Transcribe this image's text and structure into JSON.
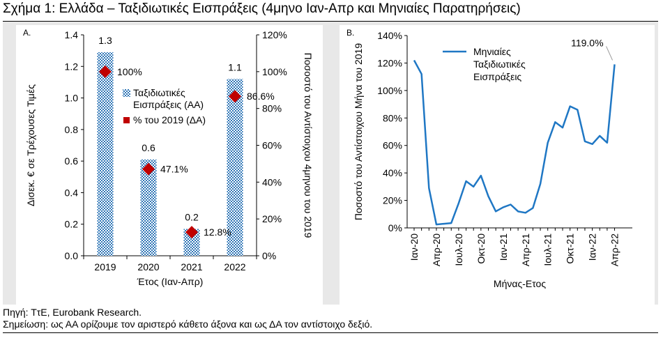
{
  "title": "Σχήμα 1: Ελλάδα – Ταξιδιωτικές Εισπράξεις (4μηνο Ιαν-Απρ και Μηνιαίες Παρατηρήσεις)",
  "notes": {
    "source": "Πηγή: ΤτΕ, Eurobank Research.",
    "remark": "Σημείωση: ως ΑΑ ορίζουμε τον αριστερό κάθετο άξονα και ως ΔΑ τον αντίστοιχο δεξιό."
  },
  "colors": {
    "bar": "#2e75b6",
    "marker": "#c00000",
    "line": "#1f77c4",
    "panel_background": "#e8e8e8"
  },
  "chart_data": [
    {
      "panel_label": "A.",
      "type": "bar",
      "categories": [
        "2019",
        "2020",
        "2021",
        "2022"
      ],
      "xlabel": "Έτος (Ιαν-Απρ)",
      "ylabel": "Δισεκ. € σε Τρέχουσες Τιμές",
      "ylabel_right": "Ποσοστό του Αντίστοιχου 4μηνου του 2019",
      "ylim": [
        0,
        1.4
      ],
      "y_ticks": [
        "0.0",
        "0.2",
        "0.4",
        "0.6",
        "0.8",
        "1.0",
        "1.2",
        "1.4"
      ],
      "ylim_right": [
        0,
        1.2
      ],
      "y_ticks_right": [
        "0%",
        "20%",
        "40%",
        "60%",
        "80%",
        "100%",
        "120%"
      ],
      "grid": false,
      "legend_position": "middle",
      "series": [
        {
          "name": "Ταξιδιωτικές Εισπράξεις (ΑΑ)",
          "name_lines": [
            "Ταξιδιωτικές",
            "Εισπράξεις (ΑΑ)"
          ],
          "axis": "left",
          "style": "hatched-bar",
          "values": [
            1.29,
            0.61,
            0.17,
            1.12
          ],
          "labels": [
            "1.3",
            "0.6",
            "0.2",
            "1.1"
          ]
        },
        {
          "name": "% του 2019 (ΔΑ)",
          "axis": "right",
          "style": "diamond-marker",
          "values": [
            1.0,
            0.471,
            0.128,
            0.866
          ],
          "labels": [
            "100%",
            "47.1%",
            "12.8%",
            "86.6%"
          ]
        }
      ]
    },
    {
      "panel_label": "B.",
      "type": "line",
      "xlabel": "Μήνας-Ετος",
      "ylabel": "Ποσοστό του Αντίστοιχου Μήνα του 2019",
      "ylim": [
        0,
        1.4
      ],
      "y_ticks": [
        "0%",
        "20%",
        "40%",
        "60%",
        "80%",
        "100%",
        "120%",
        "140%"
      ],
      "x_tick_labels": [
        "Ιαν-20",
        "Απρ-20",
        "Ιουλ-20",
        "Οκτ-20",
        "Ιαν-21",
        "Απρ-21",
        "Ιουλ-21",
        "Οκτ-21",
        "Ιαν-22",
        "Απρ-22"
      ],
      "grid": false,
      "legend_position": "top-left",
      "series": [
        {
          "name": "Μηνιαίες Ταξιδιωτικές Εισπράξεις",
          "name_lines": [
            "Μηνιαίες",
            "Ταξιδιωτικές",
            "Εισπράξεις"
          ],
          "x": [
            "Ιαν-20",
            "Φεβ-20",
            "Μαρ-20",
            "Απρ-20",
            "Μαϊ-20",
            "Ιουν-20",
            "Ιουλ-20",
            "Αυγ-20",
            "Σεπ-20",
            "Οκτ-20",
            "Νοε-20",
            "Δεκ-20",
            "Ιαν-21",
            "Φεβ-21",
            "Μαρ-21",
            "Απρ-21",
            "Μαϊ-21",
            "Ιουν-21",
            "Ιουλ-21",
            "Αυγ-21",
            "Σεπ-21",
            "Οκτ-21",
            "Νοε-21",
            "Δεκ-21",
            "Ιαν-22",
            "Φεβ-22",
            "Μαρ-22",
            "Απρ-22"
          ],
          "values": [
            1.22,
            1.12,
            0.29,
            0.025,
            0.03,
            0.035,
            0.18,
            0.34,
            0.3,
            0.38,
            0.23,
            0.12,
            0.15,
            0.17,
            0.12,
            0.11,
            0.145,
            0.32,
            0.62,
            0.77,
            0.73,
            0.885,
            0.86,
            0.63,
            0.61,
            0.67,
            0.62,
            1.19
          ],
          "annotation": "119.0%"
        }
      ]
    }
  ]
}
